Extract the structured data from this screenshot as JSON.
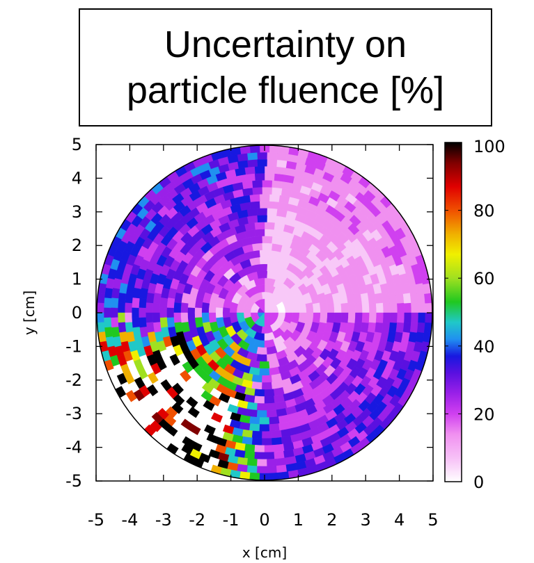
{
  "title": {
    "line1": "Uncertainty on",
    "line2": "particle fluence [%]"
  },
  "chart_data": {
    "type": "heatmap",
    "xlabel": "x [cm]",
    "ylabel": "y [cm]",
    "xlim": [
      -5,
      5
    ],
    "ylim": [
      -5,
      5
    ],
    "x_ticks": [
      "-5",
      "-4",
      "-3",
      "-2",
      "-1",
      "0",
      "1",
      "2",
      "3",
      "4",
      "5"
    ],
    "y_ticks": [
      "5",
      "4",
      "3",
      "2",
      "1",
      "0",
      "-1",
      "-2",
      "-3",
      "-4",
      "-5"
    ],
    "colorbar": {
      "range": [
        0,
        100
      ],
      "ticks": [
        "100",
        "80",
        "60",
        "40",
        "20",
        "0"
      ]
    },
    "region": "disk of radius 5 cm centred at (0,0), polar binning",
    "quadrant_typical_uncertainty_percent": {
      "x>0,y>0": 10,
      "x<0,y>0": 24,
      "x<0,y<0": 62,
      "x>0,y<0": 22
    },
    "colors": {
      "palette": [
        "#ffffff",
        "#f8c8f8",
        "#f090f0",
        "#d040f0",
        "#9a20e8",
        "#5a10e0",
        "#1818e0",
        "#2090f0",
        "#20c8c8",
        "#20c820",
        "#a0e020",
        "#f0f000",
        "#f0b000",
        "#f05000",
        "#e00000",
        "#800000",
        "#000000"
      ]
    }
  }
}
